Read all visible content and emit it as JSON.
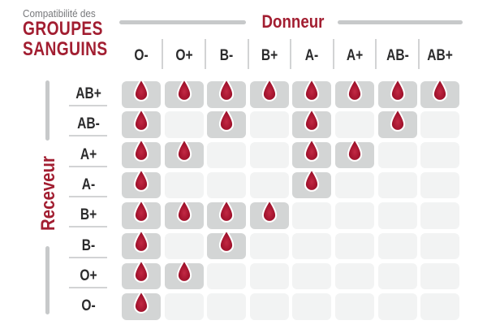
{
  "title": {
    "kicker": "Compatibilité des",
    "line1": "GROUPES",
    "line2": "SANGUINS"
  },
  "axes": {
    "donor": "Donneur",
    "recipient": "Receveur"
  },
  "chart_data": {
    "type": "heatmap",
    "title": "Compatibilité des GROUPES SANGUINS",
    "x_axis_label": "Donneur",
    "y_axis_label": "Receveur",
    "columns": [
      "O-",
      "O+",
      "B-",
      "B+",
      "A-",
      "A+",
      "AB-",
      "AB+"
    ],
    "rows": [
      "AB+",
      "AB-",
      "A+",
      "A-",
      "B+",
      "B-",
      "O+",
      "O-"
    ],
    "values": [
      [
        1,
        1,
        1,
        1,
        1,
        1,
        1,
        1
      ],
      [
        1,
        0,
        1,
        0,
        1,
        0,
        1,
        0
      ],
      [
        1,
        1,
        0,
        0,
        1,
        1,
        0,
        0
      ],
      [
        1,
        0,
        0,
        0,
        1,
        0,
        0,
        0
      ],
      [
        1,
        1,
        1,
        1,
        0,
        0,
        0,
        0
      ],
      [
        1,
        0,
        1,
        0,
        0,
        0,
        0,
        0
      ],
      [
        1,
        1,
        0,
        0,
        0,
        0,
        0,
        0
      ],
      [
        1,
        0,
        0,
        0,
        0,
        0,
        0,
        0
      ]
    ],
    "marker": "blood-drop-icon",
    "legend_position": "none",
    "grid": "cells"
  },
  "colors": {
    "crimson": "#A21E31",
    "gray_text": "#77787B",
    "ink": "#2B2B2C",
    "axis_line": "#C7C9CA",
    "separator": "#D2D3D4",
    "cell_active": "#D3D5D5",
    "cell_inactive": "#F2F3F3",
    "drop_center": "#C22944",
    "drop_mid": "#A5152F",
    "drop_edge": "#8C0D24",
    "drop_outline": "#FFFFFF"
  }
}
